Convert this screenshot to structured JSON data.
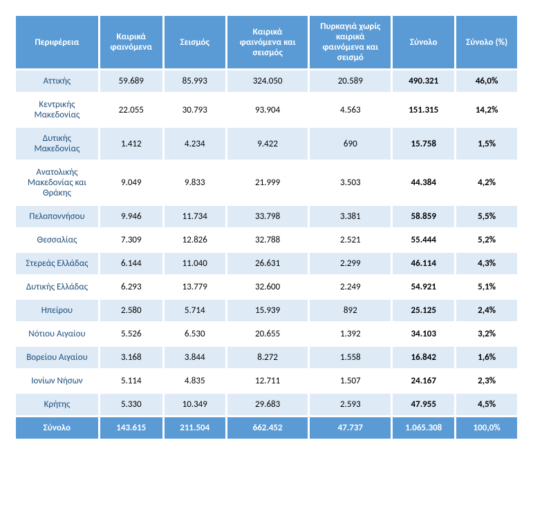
{
  "table": {
    "columns": [
      "Περιφέρεια",
      "Καιρικά φαινόμενα",
      "Σεισμός",
      "Καιρικά φαινόμενα και σεισμός",
      "Πυρκαγιά χωρίς καιρικά φαινόμενα και σεισμό",
      "Σύνολο",
      "Σύνολο (%)"
    ],
    "rows": [
      [
        "Αττικής",
        "59.689",
        "85.993",
        "324.050",
        "20.589",
        "490.321",
        "46,0%"
      ],
      [
        "Κεντρικής Μακεδονίας",
        "22.055",
        "30.793",
        "93.904",
        "4.563",
        "151.315",
        "14,2%"
      ],
      [
        "Δυτικής Μακεδονίας",
        "1.412",
        "4.234",
        "9.422",
        "690",
        "15.758",
        "1,5%"
      ],
      [
        "Ανατολικής Μακεδονίας και Θράκης",
        "9.049",
        "9.833",
        "21.999",
        "3.503",
        "44.384",
        "4,2%"
      ],
      [
        "Πελοποννήσου",
        "9.946",
        "11.734",
        "33.798",
        "3.381",
        "58.859",
        "5,5%"
      ],
      [
        "Θεσσαλίας",
        "7.309",
        "12.826",
        "32.788",
        "2.521",
        "55.444",
        "5,2%"
      ],
      [
        "Στερεάς Ελλάδας",
        "6.144",
        "11.040",
        "26.631",
        "2.299",
        "46.114",
        "4,3%"
      ],
      [
        "Δυτικής Ελλάδας",
        "6.293",
        "13.779",
        "32.600",
        "2.249",
        "54.921",
        "5,1%"
      ],
      [
        "Ηπείρου",
        "2.580",
        "5.714",
        "15.939",
        "892",
        "25.125",
        "2,4%"
      ],
      [
        "Νότιου Αιγαίου",
        "5.526",
        "6.530",
        "20.655",
        "1.392",
        "34.103",
        "3,2%"
      ],
      [
        "Βορείου Αιγαίου",
        "3.168",
        "3.844",
        "8.272",
        "1.558",
        "16.842",
        "1,6%"
      ],
      [
        "Ιονίων Νήσων",
        "5.114",
        "4.835",
        "12.711",
        "1.507",
        "24.167",
        "2,3%"
      ],
      [
        "Κρήτης",
        "5.330",
        "10.349",
        "29.683",
        "2.593",
        "47.955",
        "4,5%"
      ]
    ],
    "footer": [
      "Σύνολο",
      "143.615",
      "211.504",
      "662.452",
      "47.737",
      "1.065.308",
      "100,0%"
    ],
    "colors": {
      "header_bg": "#5b9bd5",
      "header_fg": "#ffffff",
      "row_odd_bg": "#deeaf6",
      "row_even_bg": "#ffffff",
      "region_text": "#1f4e79",
      "footer_bg": "#5b9bd5",
      "footer_fg": "#ffffff"
    },
    "font_size": 13,
    "bold_columns": [
      5,
      6
    ]
  }
}
